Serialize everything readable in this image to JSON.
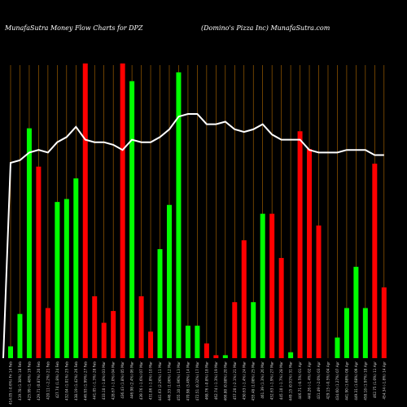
{
  "header": {
    "left": "MunafaSutra  Money Flow  Charts for DPZ",
    "right": "(Domino's Pizza  Inc) MunafaSutra.com"
  },
  "colors": {
    "background": "#000000",
    "grid": "#b36b00",
    "up": "#00ff00",
    "down": "#ff0000",
    "line": "#ffffff"
  },
  "chart_data": {
    "type": "bar",
    "y_scale": "relative money flow (no axis printed)",
    "grid": true,
    "legend": "none",
    "bars": [
      {
        "label": "414.05 (-0.6%) Fri 14 Feb",
        "value": 4,
        "dir": "up"
      },
      {
        "label": "419.78 (1.38%) 18 Feb",
        "value": 15,
        "dir": "up"
      },
      {
        "label": "425.99 (1.48%) 19 Feb",
        "value": 78,
        "dir": "up"
      },
      {
        "label": "429.71 (0.87%) 20 Feb",
        "value": 65,
        "dir": "down"
      },
      {
        "label": "420.11 (-2.2%) 21 Feb",
        "value": 17,
        "dir": "down"
      },
      {
        "label": "427.74 (1.8%) 24 Feb",
        "value": 53,
        "dir": "up"
      },
      {
        "label": "432.04 (1.01%) 25 Feb",
        "value": 54,
        "dir": "up"
      },
      {
        "label": "438.19 (1.42%) 26 Feb",
        "value": 61,
        "dir": "up"
      },
      {
        "label": "446.93 (1.99%) 27 Feb",
        "value": 100,
        "dir": "down"
      },
      {
        "label": "441.05 (-1.3%) 28 Feb",
        "value": 21,
        "dir": "down"
      },
      {
        "label": "433.10 (-1.8%) 03 Mar",
        "value": 12,
        "dir": "down"
      },
      {
        "label": "428.67 (-1.0%) 04 Mar",
        "value": 16,
        "dir": "down"
      },
      {
        "label": "436.43 (1.8%) 05 Mar",
        "value": 100,
        "dir": "down"
      },
      {
        "label": "446.98 (2.4%) 06 Mar",
        "value": 94,
        "dir": "up"
      },
      {
        "label": "439.76 (-1.6%) 07 Mar",
        "value": 21,
        "dir": "down"
      },
      {
        "label": "431.86 (-1.8%) 10 Mar",
        "value": 9,
        "dir": "down"
      },
      {
        "label": "441.63 (2.26%) 11 Mar",
        "value": 37,
        "dir": "up"
      },
      {
        "label": "446.33 (1.06%) 12 Mar",
        "value": 52,
        "dir": "up"
      },
      {
        "label": "455.10 (1.96%) 13 Mar",
        "value": 97,
        "dir": "up"
      },
      {
        "label": "470.98 (3.49%) 14 Mar",
        "value": 11,
        "dir": "up"
      },
      {
        "label": "472.51 (0.32%) 17 Mar",
        "value": 11,
        "dir": "up"
      },
      {
        "label": "468.76 (-0.8%) 18 Mar",
        "value": 5,
        "dir": "down"
      },
      {
        "label": "462.74 (-1.3%) 19 Mar",
        "value": 1,
        "dir": "down"
      },
      {
        "label": "466.80 (0.88%) 20 Mar",
        "value": 1,
        "dir": "up"
      },
      {
        "label": "457.20 (-2.1%) 21 Mar",
        "value": 19,
        "dir": "down"
      },
      {
        "label": "450.63 (-1.4%) 24 Mar",
        "value": 40,
        "dir": "down"
      },
      {
        "label": "455.48 (1.08%) 25 Mar",
        "value": 19,
        "dir": "up"
      },
      {
        "label": "461.39 (1.3%) 26 Mar",
        "value": 49,
        "dir": "up"
      },
      {
        "label": "452.63 (-1.9%) 27 Mar",
        "value": 49,
        "dir": "down"
      },
      {
        "label": "445.10 (-1.7%) 28 Mar",
        "value": 34,
        "dir": "down"
      },
      {
        "label": "449.15 (0.91%) 31 Mar",
        "value": 2,
        "dir": "up"
      },
      {
        "label": "446.71 (-0.5%) 01 Apr",
        "value": 77,
        "dir": "down"
      },
      {
        "label": "440.26 (-1.4%) 02 Apr",
        "value": 71,
        "dir": "down"
      },
      {
        "label": "431.49 (-2.0%) 03 Apr",
        "value": 45,
        "dir": "down"
      },
      {
        "label": "429.15 (-0.5%) 04 Apr",
        "value": 0,
        "dir": "down"
      },
      {
        "label": "434.60 (1.27%) 07 Apr",
        "value": 7,
        "dir": "up"
      },
      {
        "label": "441.90 (1.68%) 08 Apr",
        "value": 17,
        "dir": "up"
      },
      {
        "label": "449.31 (1.68%) 09 Apr",
        "value": 31,
        "dir": "up"
      },
      {
        "label": "458.18 (1.97%) 10 Apr",
        "value": 17,
        "dir": "up"
      },
      {
        "label": "462.75 (1.0%) 11 Apr",
        "value": 66,
        "dir": "down"
      },
      {
        "label": "454.34 (-1.8%) 14 Apr",
        "value": 24,
        "dir": "down"
      }
    ],
    "line": {
      "name": "",
      "values": [
        81,
        82,
        85,
        86,
        85,
        89,
        91,
        95,
        90,
        89,
        89,
        88,
        86,
        90,
        89,
        89,
        91,
        94,
        99,
        100,
        100,
        96,
        96,
        97,
        94,
        93,
        94,
        96,
        92,
        90,
        90,
        90,
        86,
        85,
        85,
        85,
        86,
        86,
        86,
        84,
        84
      ]
    }
  }
}
